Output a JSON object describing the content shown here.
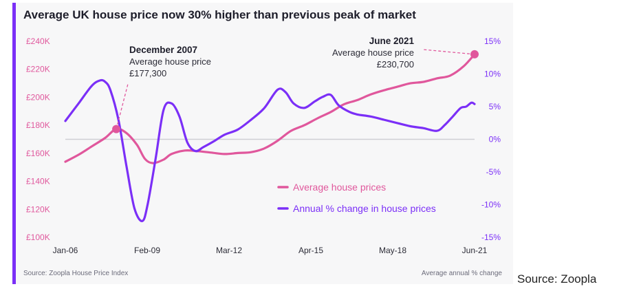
{
  "chart_data": {
    "type": "line",
    "title": "Average UK house price now 30% higher than previous peak of market",
    "x_ticks": [
      "Jan-06",
      "Feb-09",
      "Mar-12",
      "Apr-15",
      "May-18",
      "Jun-21"
    ],
    "x_range": [
      2006.0,
      2021.42
    ],
    "y_left": {
      "ticks": [
        "£100K",
        "£120K",
        "£140K",
        "£160K",
        "£180K",
        "£200K",
        "£220K",
        "£240K"
      ],
      "range": [
        100000,
        240000
      ],
      "color": "#e0579c"
    },
    "y_right": {
      "ticks": [
        "15%",
        "10%",
        "5%",
        "0%",
        "-5%",
        "-10%",
        "-15%"
      ],
      "range": [
        -15,
        15
      ],
      "color": "#7b2ff7",
      "label": "Average annual % change"
    },
    "grid": false,
    "legend_position": "bottom-right",
    "series": [
      {
        "name": "Average house prices",
        "axis": "left",
        "color": "#e0579c",
        "x": [
          2006.0,
          2006.5,
          2007.0,
          2007.5,
          2007.92,
          2008.3,
          2008.7,
          2009.0,
          2009.3,
          2009.7,
          2010.0,
          2010.5,
          2011.0,
          2011.5,
          2012.0,
          2012.5,
          2013.0,
          2013.5,
          2014.0,
          2014.5,
          2015.0,
          2015.5,
          2016.0,
          2016.5,
          2017.0,
          2017.5,
          2018.0,
          2018.5,
          2019.0,
          2019.5,
          2020.0,
          2020.5,
          2021.0,
          2021.42
        ],
        "y": [
          154000,
          159000,
          165000,
          171000,
          177300,
          174500,
          166000,
          156000,
          153000,
          155500,
          159500,
          162000,
          161500,
          160500,
          159500,
          160200,
          160800,
          163500,
          169000,
          176000,
          180000,
          185000,
          189500,
          195000,
          198000,
          202000,
          205000,
          207500,
          210000,
          211000,
          213500,
          215500,
          222000,
          230700
        ]
      },
      {
        "name": "Annual % change in house prices",
        "axis": "right",
        "color": "#7b2ff7",
        "x": [
          2006.0,
          2006.5,
          2007.0,
          2007.3,
          2007.5,
          2007.7,
          2008.0,
          2008.3,
          2008.6,
          2008.9,
          2009.1,
          2009.4,
          2009.7,
          2010.0,
          2010.3,
          2010.6,
          2010.9,
          2011.2,
          2011.6,
          2012.0,
          2012.5,
          2013.0,
          2013.5,
          2014.0,
          2014.3,
          2014.6,
          2015.0,
          2015.4,
          2015.7,
          2016.0,
          2016.3,
          2016.7,
          2017.0,
          2017.5,
          2018.0,
          2018.5,
          2019.0,
          2019.5,
          2020.0,
          2020.3,
          2020.6,
          2020.9,
          2021.1,
          2021.3,
          2021.42
        ],
        "y": [
          2.8,
          5.5,
          8.2,
          9.0,
          8.8,
          7.5,
          3.0,
          -4.0,
          -10.5,
          -12.5,
          -10.0,
          -3.0,
          4.5,
          5.5,
          3.5,
          -0.5,
          -1.8,
          -1.2,
          -0.3,
          0.7,
          1.5,
          3.0,
          4.8,
          7.6,
          7.2,
          5.5,
          4.8,
          5.8,
          6.5,
          6.8,
          5.2,
          4.2,
          3.8,
          3.5,
          3.0,
          2.5,
          2.0,
          1.7,
          1.3,
          2.2,
          3.5,
          4.8,
          5.0,
          5.6,
          5.4
        ]
      }
    ],
    "annotations": [
      {
        "heading": "December 2007",
        "line1": "Average house price",
        "line2": "£177,300",
        "x": 2007.92,
        "y": 177300
      },
      {
        "heading": "June 2021",
        "line1": "Average house price",
        "line2": "£230,700",
        "x": 2021.42,
        "y": 230700
      }
    ],
    "baseline_right_value": 0
  },
  "footer": {
    "source_left": "Source: Zoopla House Price Index",
    "source_right": "Average annual % change",
    "outer_source": "Source: Zoopla"
  },
  "colors": {
    "accent_bar": "#7b2ff7",
    "baseline": "#cfcfd4",
    "background": "#f7f7f8"
  }
}
